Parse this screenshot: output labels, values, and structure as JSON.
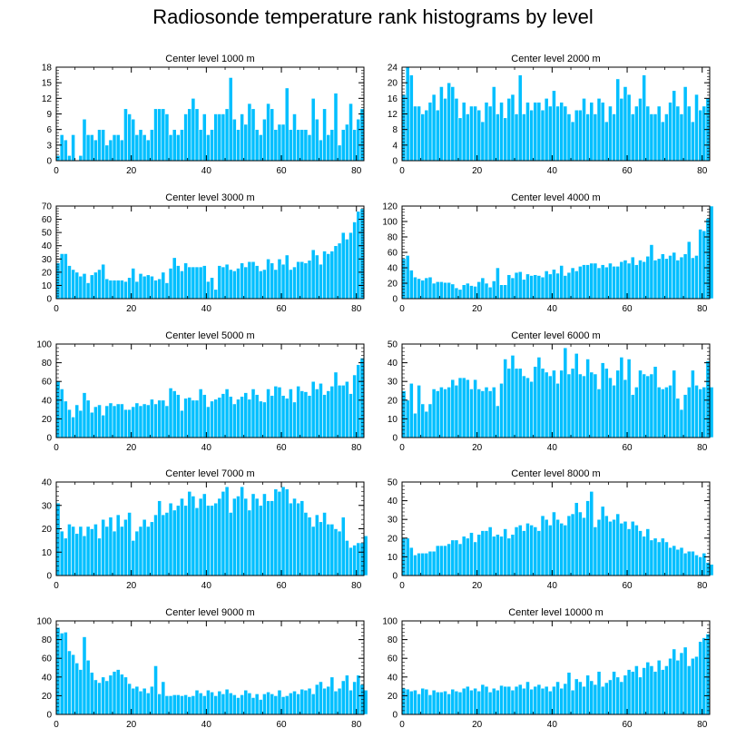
{
  "title": "Radiosonde temperature rank histograms by level",
  "colors": {
    "bar": "#00bfff",
    "bar_edge": "#ffffff",
    "axis": "#000000"
  },
  "chart_data": [
    {
      "type": "bar",
      "title": "Center level 1000 m",
      "xlim": [
        0,
        82
      ],
      "ylim": [
        0,
        18
      ],
      "xticks": [
        0,
        20,
        40,
        60,
        80
      ],
      "yticks": [
        0,
        3,
        6,
        9,
        12,
        15,
        18
      ],
      "values": [
        1,
        5,
        4,
        1,
        5,
        0,
        1,
        8,
        5,
        5,
        4,
        6,
        6,
        3,
        4,
        5,
        5,
        4,
        10,
        9,
        8,
        5,
        6,
        5,
        4,
        6,
        10,
        10,
        10,
        9,
        5,
        6,
        5,
        6,
        9,
        10,
        12,
        10,
        6,
        9,
        5,
        6,
        9,
        9,
        9,
        10,
        16,
        8,
        6,
        9,
        7,
        11,
        10,
        6,
        5,
        8,
        11,
        10,
        6,
        7,
        7,
        14,
        6,
        9,
        6,
        6,
        6,
        5,
        12,
        8,
        4,
        10,
        5,
        6,
        13,
        3,
        6,
        7,
        11,
        6,
        8,
        10
      ]
    },
    {
      "type": "bar",
      "title": "Center level 2000 m",
      "xlim": [
        0,
        82
      ],
      "ylim": [
        0,
        24
      ],
      "xticks": [
        0,
        20,
        40,
        60,
        80
      ],
      "yticks": [
        0,
        4,
        8,
        12,
        16,
        20,
        24
      ],
      "values": [
        17,
        24,
        22,
        14,
        14,
        12,
        13,
        15,
        17,
        13,
        19,
        16,
        20,
        19,
        16,
        11,
        15,
        12,
        14,
        14,
        13,
        10,
        15,
        14,
        19,
        12,
        15,
        11,
        16,
        17,
        12,
        22,
        12,
        15,
        13,
        15,
        15,
        13,
        16,
        14,
        18,
        14,
        15,
        14,
        12,
        10,
        13,
        13,
        16,
        12,
        15,
        12,
        16,
        15,
        10,
        14,
        12,
        21,
        16,
        19,
        17,
        12,
        14,
        16,
        22,
        14,
        12,
        12,
        14,
        10,
        12,
        15,
        18,
        14,
        12,
        19,
        14,
        10,
        17,
        13,
        14,
        16
      ]
    },
    {
      "type": "bar",
      "title": "Center level 3000 m",
      "xlim": [
        0,
        82
      ],
      "ylim": [
        0,
        70
      ],
      "xticks": [
        0,
        20,
        40,
        60,
        80
      ],
      "yticks": [
        0,
        10,
        20,
        30,
        40,
        50,
        60,
        70
      ],
      "values": [
        27,
        34,
        34,
        25,
        22,
        20,
        17,
        19,
        12,
        18,
        20,
        22,
        26,
        15,
        14,
        14,
        14,
        14,
        13,
        16,
        23,
        13,
        19,
        17,
        18,
        17,
        14,
        15,
        20,
        12,
        23,
        31,
        25,
        21,
        27,
        24,
        24,
        24,
        24,
        25,
        13,
        16,
        7,
        25,
        24,
        26,
        22,
        21,
        23,
        27,
        24,
        28,
        28,
        25,
        21,
        22,
        30,
        27,
        22,
        30,
        26,
        33,
        22,
        24,
        28,
        28,
        27,
        29,
        37,
        33,
        26,
        36,
        34,
        36,
        40,
        42,
        50,
        45,
        50,
        58,
        66,
        68
      ]
    },
    {
      "type": "bar",
      "title": "Center level 4000 m",
      "xlim": [
        0,
        82
      ],
      "ylim": [
        0,
        120
      ],
      "xticks": [
        0,
        20,
        40,
        60,
        80
      ],
      "yticks": [
        0,
        20,
        40,
        60,
        80,
        100,
        120
      ],
      "values": [
        52,
        56,
        37,
        28,
        26,
        24,
        27,
        28,
        20,
        22,
        22,
        21,
        21,
        19,
        14,
        12,
        18,
        20,
        17,
        16,
        22,
        27,
        20,
        15,
        23,
        40,
        18,
        18,
        31,
        27,
        34,
        35,
        25,
        32,
        30,
        31,
        30,
        28,
        36,
        32,
        38,
        33,
        43,
        30,
        34,
        40,
        36,
        42,
        44,
        44,
        46,
        46,
        40,
        44,
        41,
        46,
        42,
        42,
        48,
        50,
        46,
        54,
        44,
        50,
        48,
        55,
        70,
        50,
        52,
        58,
        52,
        56,
        60,
        50,
        54,
        58,
        74,
        53,
        56,
        90,
        88,
        104,
        120
      ]
    },
    {
      "type": "bar",
      "title": "Center level 5000 m",
      "xlim": [
        0,
        82
      ],
      "ylim": [
        0,
        100
      ],
      "xticks": [
        0,
        20,
        40,
        60,
        80
      ],
      "yticks": [
        0,
        20,
        40,
        60,
        80,
        100
      ],
      "values": [
        60,
        52,
        39,
        30,
        22,
        35,
        29,
        48,
        40,
        27,
        33,
        35,
        24,
        34,
        37,
        34,
        36,
        36,
        30,
        30,
        33,
        37,
        34,
        36,
        35,
        41,
        36,
        40,
        40,
        34,
        53,
        50,
        46,
        29,
        42,
        43,
        40,
        40,
        52,
        46,
        33,
        39,
        41,
        43,
        47,
        52,
        44,
        36,
        41,
        44,
        48,
        41,
        52,
        46,
        39,
        38,
        52,
        45,
        55,
        54,
        45,
        42,
        52,
        38,
        55,
        50,
        49,
        45,
        60,
        52,
        58,
        46,
        50,
        55,
        70,
        56,
        56,
        60,
        47,
        67,
        78,
        85
      ]
    },
    {
      "type": "bar",
      "title": "Center level 6000 m",
      "xlim": [
        0,
        82
      ],
      "ylim": [
        0,
        50
      ],
      "xticks": [
        0,
        20,
        40,
        60,
        80
      ],
      "yticks": [
        0,
        10,
        20,
        30,
        40,
        50
      ],
      "values": [
        25,
        20,
        29,
        13,
        28,
        18,
        14,
        18,
        26,
        25,
        27,
        26,
        27,
        31,
        28,
        32,
        32,
        31,
        26,
        31,
        26,
        25,
        27,
        25,
        27,
        17,
        29,
        42,
        37,
        44,
        37,
        37,
        33,
        32,
        30,
        38,
        43,
        37,
        35,
        33,
        36,
        29,
        36,
        48,
        34,
        37,
        45,
        34,
        33,
        42,
        35,
        34,
        26,
        40,
        37,
        32,
        28,
        36,
        43,
        31,
        42,
        23,
        27,
        36,
        34,
        33,
        34,
        38,
        27,
        26,
        27,
        28,
        36,
        21,
        15,
        23,
        27,
        36,
        28,
        26,
        27,
        41,
        27
      ]
    },
    {
      "type": "bar",
      "title": "Center level 7000 m",
      "xlim": [
        0,
        82
      ],
      "ylim": [
        0,
        40
      ],
      "xticks": [
        0,
        20,
        40,
        60,
        80
      ],
      "yticks": [
        0,
        10,
        20,
        30,
        40
      ],
      "values": [
        31,
        19,
        16,
        22,
        21,
        18,
        21,
        17,
        21,
        20,
        22,
        16,
        24,
        21,
        25,
        19,
        26,
        21,
        24,
        27,
        15,
        19,
        21,
        24,
        21,
        23,
        26,
        32,
        26,
        27,
        31,
        28,
        30,
        33,
        30,
        36,
        34,
        29,
        33,
        35,
        30,
        30,
        31,
        33,
        36,
        38,
        27,
        33,
        34,
        38,
        33,
        28,
        35,
        33,
        30,
        35,
        32,
        32,
        37,
        36,
        38,
        37,
        31,
        33,
        31,
        32,
        27,
        25,
        21,
        26,
        23,
        27,
        22,
        22,
        20,
        19,
        25,
        15,
        12,
        13,
        14,
        14,
        17
      ]
    },
    {
      "type": "bar",
      "title": "Center level 8000 m",
      "xlim": [
        0,
        82
      ],
      "ylim": [
        0,
        50
      ],
      "xticks": [
        0,
        20,
        40,
        60,
        80
      ],
      "yticks": [
        0,
        10,
        20,
        30,
        40,
        50
      ],
      "values": [
        20,
        20,
        15,
        11,
        12,
        12,
        12,
        13,
        13,
        16,
        16,
        16,
        17,
        19,
        19,
        17,
        21,
        20,
        23,
        18,
        22,
        24,
        24,
        26,
        21,
        22,
        21,
        25,
        20,
        22,
        26,
        27,
        24,
        28,
        27,
        26,
        24,
        32,
        30,
        27,
        34,
        30,
        28,
        27,
        32,
        33,
        39,
        34,
        31,
        40,
        45,
        26,
        30,
        37,
        32,
        29,
        30,
        33,
        28,
        29,
        25,
        29,
        27,
        24,
        21,
        25,
        19,
        20,
        18,
        20,
        18,
        15,
        16,
        14,
        15,
        12,
        13,
        13,
        11,
        10,
        12,
        7,
        6
      ]
    },
    {
      "type": "bar",
      "title": "Center level 9000 m",
      "xlim": [
        0,
        82
      ],
      "ylim": [
        0,
        100
      ],
      "xticks": [
        0,
        20,
        40,
        60,
        80
      ],
      "yticks": [
        0,
        20,
        40,
        60,
        80,
        100
      ],
      "values": [
        93,
        87,
        88,
        68,
        64,
        55,
        48,
        83,
        58,
        45,
        37,
        34,
        40,
        36,
        42,
        46,
        48,
        43,
        40,
        33,
        28,
        30,
        25,
        28,
        23,
        30,
        52,
        22,
        35,
        20,
        20,
        21,
        21,
        20,
        21,
        19,
        20,
        26,
        23,
        20,
        26,
        24,
        20,
        25,
        22,
        27,
        23,
        21,
        18,
        21,
        26,
        23,
        18,
        22,
        16,
        22,
        24,
        22,
        20,
        26,
        19,
        20,
        23,
        25,
        22,
        27,
        26,
        28,
        22,
        32,
        35,
        28,
        30,
        40,
        25,
        28,
        36,
        42,
        26,
        35,
        42,
        32,
        26
      ]
    },
    {
      "type": "bar",
      "title": "Center level 10000 m",
      "xlim": [
        0,
        82
      ],
      "ylim": [
        0,
        100
      ],
      "xticks": [
        0,
        20,
        40,
        60,
        80
      ],
      "yticks": [
        0,
        20,
        40,
        60,
        80,
        100
      ],
      "values": [
        28,
        27,
        25,
        26,
        22,
        28,
        27,
        21,
        26,
        24,
        24,
        25,
        22,
        27,
        25,
        24,
        28,
        30,
        26,
        28,
        25,
        32,
        30,
        24,
        28,
        26,
        31,
        30,
        30,
        26,
        30,
        32,
        28,
        35,
        27,
        30,
        32,
        28,
        30,
        25,
        30,
        35,
        28,
        33,
        45,
        26,
        38,
        35,
        30,
        42,
        36,
        32,
        46,
        30,
        34,
        37,
        46,
        40,
        35,
        42,
        48,
        46,
        52,
        40,
        50,
        56,
        52,
        46,
        58,
        48,
        52,
        60,
        70,
        58,
        66,
        72,
        52,
        60,
        62,
        78,
        82,
        86
      ]
    }
  ]
}
